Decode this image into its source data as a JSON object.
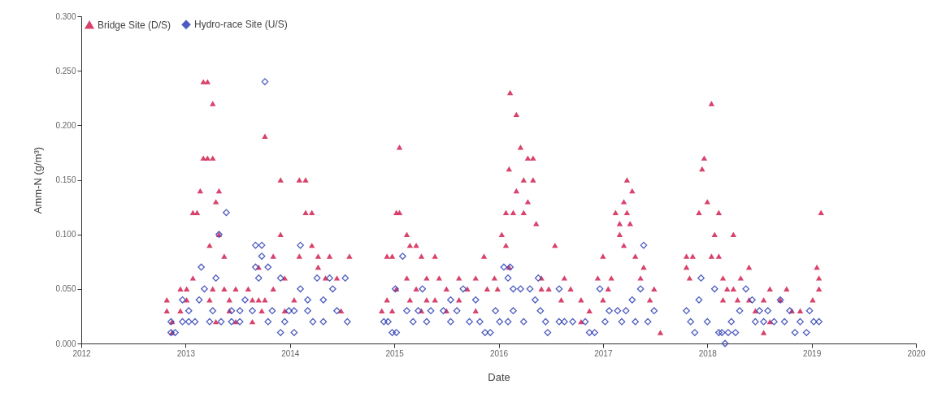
{
  "chart_data": {
    "type": "scatter",
    "xlabel": "Date",
    "ylabel": "Amm-N (g/m³)",
    "xlim": [
      2012,
      2020
    ],
    "xticks": [
      2012,
      2013,
      2014,
      2015,
      2016,
      2017,
      2018,
      2019,
      2020
    ],
    "ylim": [
      0,
      0.3
    ],
    "yticks": [
      {
        "value": 0,
        "label": "0.000"
      },
      {
        "value": 0.05,
        "label": "0.050"
      },
      {
        "value": 0.1,
        "label": "0.100"
      },
      {
        "value": 0.15,
        "label": "0.150"
      },
      {
        "value": 0.2,
        "label": "0.200"
      },
      {
        "value": 0.25,
        "label": "0.250"
      },
      {
        "value": 0.3,
        "label": "0.300"
      }
    ],
    "grid": false,
    "legend": "top left",
    "series": [
      {
        "name": "Bridge Site (D/S)",
        "color": "#d42e5b",
        "marker": "triangle",
        "x": [
          2012.82,
          2012.82,
          2012.87,
          2012.87,
          2012.95,
          2012.95,
          2013.01,
          2013.01,
          2013.07,
          2013.07,
          2013.11,
          2013.14,
          2013.17,
          2013.17,
          2013.21,
          2013.21,
          2013.23,
          2013.23,
          2013.26,
          2013.26,
          2013.26,
          2013.29,
          2013.29,
          2013.32,
          2013.32,
          2013.37,
          2013.37,
          2013.42,
          2013.42,
          2013.48,
          2013.48,
          2013.6,
          2013.64,
          2013.64,
          2013.7,
          2013.7,
          2013.73,
          2013.76,
          2013.76,
          2013.84,
          2013.84,
          2013.91,
          2013.91,
          2013.95,
          2013.95,
          2014.04,
          2014.09,
          2014.09,
          2014.15,
          2014.15,
          2014.21,
          2014.21,
          2014.27,
          2014.27,
          2014.34,
          2014.38,
          2014.45,
          2014.49,
          2014.57,
          2014.88,
          2014.93,
          2014.93,
          2014.98,
          2014.98,
          2015.02,
          2015.02,
          2015.05,
          2015.05,
          2015.12,
          2015.12,
          2015.15,
          2015.15,
          2015.21,
          2015.21,
          2015.26,
          2015.26,
          2015.31,
          2015.31,
          2015.39,
          2015.39,
          2015.43,
          2015.5,
          2015.5,
          2015.62,
          2015.62,
          2015.7,
          2015.78,
          2015.78,
          2015.86,
          2015.89,
          2015.96,
          2015.99,
          2016.03,
          2016.07,
          2016.07,
          2016.1,
          2016.1,
          2016.11,
          2016.14,
          2016.17,
          2016.17,
          2016.21,
          2016.24,
          2016.24,
          2016.28,
          2016.28,
          2016.33,
          2016.33,
          2016.36,
          2016.41,
          2016.41,
          2016.48,
          2016.54,
          2016.6,
          2016.63,
          2016.69,
          2016.79,
          2016.79,
          2016.87,
          2016.95,
          2017.0,
          2017.0,
          2017.05,
          2017.08,
          2017.12,
          2017.16,
          2017.16,
          2017.2,
          2017.2,
          2017.23,
          2017.23,
          2017.26,
          2017.28,
          2017.31,
          2017.36,
          2017.39,
          2017.45,
          2017.49,
          2017.55,
          2017.8,
          2017.8,
          2017.83,
          2017.86,
          2017.92,
          2017.95,
          2017.97,
          2018.0,
          2018.04,
          2018.04,
          2018.07,
          2018.11,
          2018.11,
          2018.15,
          2018.15,
          2018.19,
          2018.25,
          2018.25,
          2018.29,
          2018.32,
          2018.4,
          2018.4,
          2018.46,
          2018.54,
          2018.54,
          2018.6,
          2018.6,
          2018.7,
          2018.76,
          2018.81,
          2018.89,
          2019.01,
          2019.05,
          2019.07,
          2019.07,
          2019.09
        ],
        "values": [
          0.04,
          0.03,
          0.02,
          0.01,
          0.03,
          0.05,
          0.04,
          0.05,
          0.12,
          0.06,
          0.12,
          0.14,
          0.24,
          0.17,
          0.24,
          0.17,
          0.09,
          0.04,
          0.22,
          0.17,
          0.05,
          0.13,
          0.02,
          0.14,
          0.1,
          0.08,
          0.05,
          0.04,
          0.03,
          0.02,
          0.05,
          0.05,
          0.04,
          0.02,
          0.07,
          0.04,
          0.03,
          0.19,
          0.04,
          0.08,
          0.05,
          0.15,
          0.1,
          0.06,
          0.03,
          0.04,
          0.15,
          0.08,
          0.15,
          0.12,
          0.12,
          0.09,
          0.08,
          0.07,
          0.06,
          0.08,
          0.06,
          0.03,
          0.08,
          0.03,
          0.08,
          0.04,
          0.08,
          0.03,
          0.12,
          0.05,
          0.18,
          0.12,
          0.1,
          0.06,
          0.09,
          0.04,
          0.09,
          0.05,
          0.08,
          0.03,
          0.06,
          0.04,
          0.08,
          0.04,
          0.06,
          0.05,
          0.03,
          0.06,
          0.04,
          0.05,
          0.06,
          0.03,
          0.08,
          0.05,
          0.06,
          0.05,
          0.1,
          0.12,
          0.09,
          0.16,
          0.07,
          0.23,
          0.12,
          0.21,
          0.14,
          0.18,
          0.15,
          0.12,
          0.17,
          0.13,
          0.17,
          0.15,
          0.11,
          0.06,
          0.05,
          0.05,
          0.09,
          0.04,
          0.06,
          0.05,
          0.04,
          0.02,
          0.03,
          0.06,
          0.08,
          0.04,
          0.05,
          0.06,
          0.12,
          0.1,
          0.11,
          0.13,
          0.09,
          0.15,
          0.12,
          0.11,
          0.14,
          0.08,
          0.06,
          0.07,
          0.04,
          0.05,
          0.01,
          0.08,
          0.07,
          0.06,
          0.08,
          0.12,
          0.16,
          0.17,
          0.13,
          0.22,
          0.08,
          0.1,
          0.12,
          0.08,
          0.06,
          0.04,
          0.05,
          0.1,
          0.05,
          0.04,
          0.06,
          0.07,
          0.04,
          0.03,
          0.04,
          0.01,
          0.05,
          0.02,
          0.04,
          0.05,
          0.03,
          0.03,
          0.04,
          0.07,
          0.06,
          0.05,
          0.12
        ]
      },
      {
        "name": "Hydro-race Site (U/S)",
        "color": "#3a4bb8",
        "marker": "diamond",
        "x": [
          2012.86,
          2012.86,
          2012.9,
          2012.97,
          2012.97,
          2013.03,
          2013.03,
          2013.09,
          2013.13,
          2013.15,
          2013.18,
          2013.23,
          2013.26,
          2013.29,
          2013.32,
          2013.34,
          2013.39,
          2013.44,
          2013.44,
          2013.52,
          2013.52,
          2013.57,
          2013.64,
          2013.67,
          2013.67,
          2013.7,
          2013.73,
          2013.73,
          2013.76,
          2013.79,
          2013.79,
          2013.83,
          2013.91,
          2013.91,
          2013.95,
          2013.99,
          2014.04,
          2014.04,
          2014.1,
          2014.1,
          2014.17,
          2014.17,
          2014.22,
          2014.26,
          2014.32,
          2014.32,
          2014.38,
          2014.41,
          2014.45,
          2014.53,
          2014.55,
          2014.9,
          2014.94,
          2014.98,
          2015.01,
          2015.02,
          2015.08,
          2015.12,
          2015.18,
          2015.23,
          2015.27,
          2015.31,
          2015.35,
          2015.47,
          2015.54,
          2015.54,
          2015.6,
          2015.66,
          2015.72,
          2015.78,
          2015.82,
          2015.87,
          2015.92,
          2015.97,
          2016.01,
          2016.05,
          2016.09,
          2016.09,
          2016.11,
          2016.14,
          2016.14,
          2016.21,
          2016.24,
          2016.3,
          2016.35,
          2016.38,
          2016.4,
          2016.45,
          2016.47,
          2016.58,
          2016.58,
          2016.63,
          2016.71,
          2016.83,
          2016.87,
          2016.92,
          2016.97,
          2017.02,
          2017.06,
          2017.14,
          2017.18,
          2017.22,
          2017.28,
          2017.31,
          2017.36,
          2017.39,
          2017.43,
          2017.49,
          2017.8,
          2017.84,
          2017.88,
          2017.92,
          2017.94,
          2018.0,
          2018.07,
          2018.11,
          2018.14,
          2018.17,
          2018.2,
          2018.23,
          2018.27,
          2018.31,
          2018.37,
          2018.43,
          2018.46,
          2018.5,
          2018.54,
          2018.58,
          2018.64,
          2018.7,
          2018.74,
          2018.79,
          2018.84,
          2018.89,
          2018.95,
          2018.98,
          2019.02,
          2019.07
        ],
        "values": [
          0.01,
          0.02,
          0.01,
          0.02,
          0.04,
          0.02,
          0.03,
          0.02,
          0.04,
          0.07,
          0.05,
          0.02,
          0.03,
          0.06,
          0.1,
          0.02,
          0.12,
          0.03,
          0.02,
          0.03,
          0.02,
          0.04,
          0.03,
          0.09,
          0.07,
          0.06,
          0.09,
          0.08,
          0.24,
          0.07,
          0.02,
          0.03,
          0.06,
          0.01,
          0.02,
          0.03,
          0.03,
          0.01,
          0.09,
          0.05,
          0.03,
          0.04,
          0.02,
          0.06,
          0.02,
          0.04,
          0.06,
          0.05,
          0.03,
          0.06,
          0.02,
          0.02,
          0.02,
          0.01,
          0.05,
          0.01,
          0.08,
          0.03,
          0.02,
          0.03,
          0.05,
          0.02,
          0.03,
          0.03,
          0.02,
          0.04,
          0.03,
          0.05,
          0.02,
          0.04,
          0.02,
          0.01,
          0.01,
          0.03,
          0.02,
          0.07,
          0.06,
          0.02,
          0.07,
          0.05,
          0.03,
          0.05,
          0.02,
          0.05,
          0.04,
          0.06,
          0.03,
          0.02,
          0.01,
          0.05,
          0.02,
          0.02,
          0.02,
          0.02,
          0.01,
          0.01,
          0.05,
          0.02,
          0.03,
          0.03,
          0.02,
          0.03,
          0.04,
          0.02,
          0.05,
          0.09,
          0.02,
          0.03,
          0.03,
          0.02,
          0.01,
          0.04,
          0.06,
          0.02,
          0.05,
          0.01,
          0.01,
          0.0,
          0.01,
          0.02,
          0.01,
          0.03,
          0.05,
          0.04,
          0.02,
          0.03,
          0.02,
          0.03,
          0.02,
          0.04,
          0.02,
          0.03,
          0.01,
          0.02,
          0.01,
          0.03,
          0.02,
          0.02
        ]
      }
    ]
  }
}
